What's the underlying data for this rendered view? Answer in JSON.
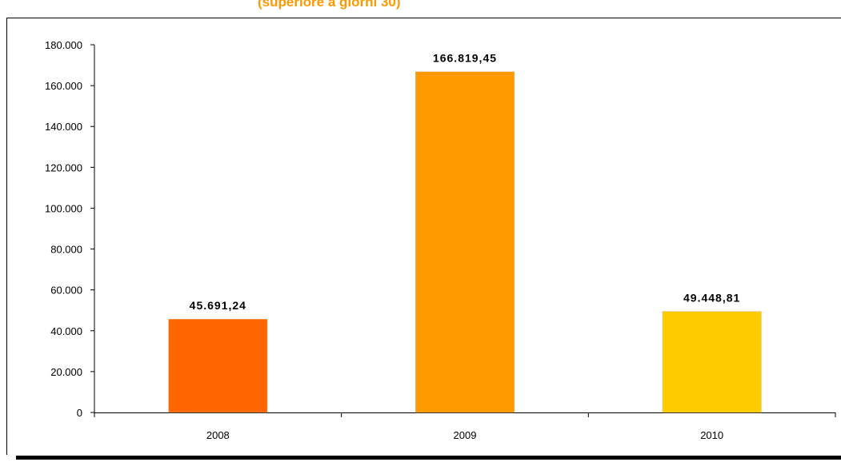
{
  "chart_data": {
    "type": "bar",
    "title": "(superiore a giorni 30)",
    "categories": [
      "2008",
      "2009",
      "2010"
    ],
    "values": [
      45691.24,
      166819.45,
      49448.81
    ],
    "value_labels": [
      "45.691,24",
      "166.819,45",
      "49.448,81"
    ],
    "bar_colors": [
      "#ff6600",
      "#ff9900",
      "#ffcc00"
    ],
    "ylim": [
      0,
      180000
    ],
    "yticks": [
      0,
      20000,
      40000,
      60000,
      80000,
      100000,
      120000,
      140000,
      160000,
      180000
    ],
    "ytick_labels": [
      "0",
      "20.000",
      "40.000",
      "60.000",
      "80.000",
      "100.000",
      "120.000",
      "140.000",
      "160.000",
      "180.000"
    ],
    "xlabel": "",
    "ylabel": "",
    "grid": false,
    "legend": "none"
  }
}
